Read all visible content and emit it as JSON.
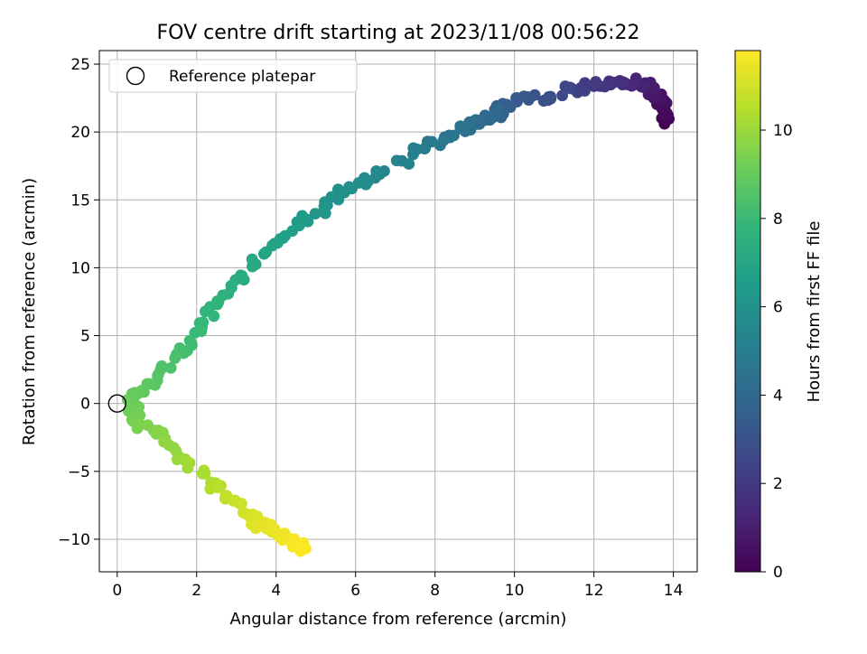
{
  "chart_data": {
    "type": "scatter",
    "title": "FOV centre drift starting at 2023/11/08 00:56:22",
    "xlabel": "Angular distance from reference (arcmin)",
    "ylabel": "Rotation from reference (arcmin)",
    "xlim": [
      -0.45,
      14.6
    ],
    "ylim": [
      -12.4,
      26.0
    ],
    "xticks": [
      0,
      2,
      4,
      6,
      8,
      10,
      12,
      14
    ],
    "xtick_labels": [
      "0",
      "2",
      "4",
      "6",
      "8",
      "10",
      "12",
      "14"
    ],
    "yticks": [
      -10,
      -5,
      0,
      5,
      10,
      15,
      20,
      25
    ],
    "ytick_labels": [
      "−10",
      "−5",
      "0",
      "5",
      "10",
      "15",
      "20",
      "25"
    ],
    "grid": true,
    "legend": {
      "position": "top-left",
      "entries": [
        "Reference platepar"
      ]
    },
    "reference_point": {
      "x": 0,
      "y": 0
    },
    "colorbar": {
      "label": "Hours from first FF file",
      "range": [
        0,
        11.8
      ],
      "ticks": [
        0,
        2,
        4,
        6,
        8,
        10
      ],
      "tick_labels": [
        "0",
        "2",
        "4",
        "6",
        "8",
        "10"
      ],
      "colormap": "viridis",
      "colormap_stops": [
        "#440154",
        "#482878",
        "#3e4989",
        "#31688e",
        "#26828e",
        "#1f9e89",
        "#35b779",
        "#6ece58",
        "#b5de2b",
        "#fde725"
      ]
    },
    "trajectory": {
      "description_points": [
        {
          "x": 13.85,
          "y": 20.7,
          "h": 0.0
        },
        {
          "x": 13.7,
          "y": 22.0,
          "h": 0.4
        },
        {
          "x": 13.3,
          "y": 23.6,
          "h": 1.0
        },
        {
          "x": 12.6,
          "y": 23.7,
          "h": 1.6
        },
        {
          "x": 11.7,
          "y": 23.3,
          "h": 2.2
        },
        {
          "x": 10.8,
          "y": 22.6,
          "h": 2.9
        },
        {
          "x": 9.9,
          "y": 22.0,
          "h": 3.5
        },
        {
          "x": 9.3,
          "y": 21.0,
          "h": 4.0
        },
        {
          "x": 8.7,
          "y": 20.3,
          "h": 4.4
        },
        {
          "x": 7.8,
          "y": 19.0,
          "h": 4.9
        },
        {
          "x": 6.5,
          "y": 16.8,
          "h": 5.6
        },
        {
          "x": 5.5,
          "y": 15.2,
          "h": 6.0
        },
        {
          "x": 4.5,
          "y": 13.0,
          "h": 6.5
        },
        {
          "x": 3.5,
          "y": 10.5,
          "h": 7.0
        },
        {
          "x": 2.6,
          "y": 8.0,
          "h": 7.5
        },
        {
          "x": 2.0,
          "y": 5.2,
          "h": 8.0
        },
        {
          "x": 1.2,
          "y": 2.5,
          "h": 8.5
        },
        {
          "x": 0.3,
          "y": 0.5,
          "h": 9.0
        },
        {
          "x": 0.5,
          "y": -1.2,
          "h": 9.3
        },
        {
          "x": 1.3,
          "y": -3.0,
          "h": 9.8
        },
        {
          "x": 2.2,
          "y": -5.2,
          "h": 10.3
        },
        {
          "x": 2.9,
          "y": -7.4,
          "h": 10.8
        },
        {
          "x": 3.6,
          "y": -8.9,
          "h": 11.3
        },
        {
          "x": 4.3,
          "y": -10.0,
          "h": 11.6
        },
        {
          "x": 4.75,
          "y": -10.6,
          "h": 11.8
        }
      ],
      "approx_point_count": 260
    }
  }
}
